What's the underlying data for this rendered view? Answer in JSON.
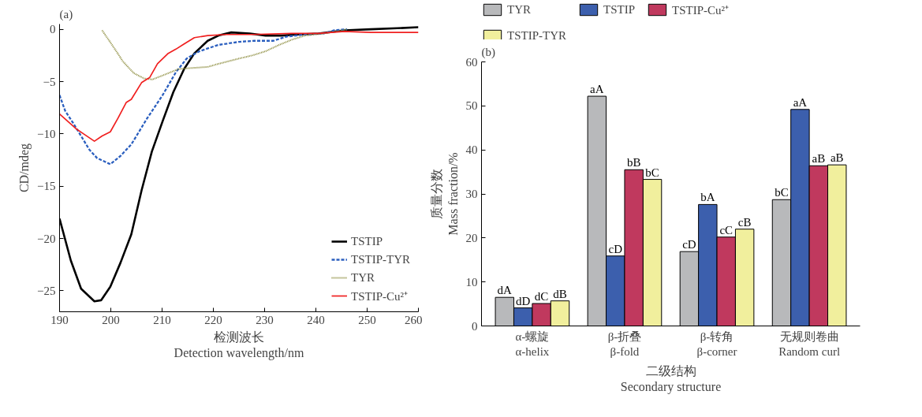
{
  "chart_data": [
    {
      "type": "line",
      "title": "(a)",
      "xlabel": "检测波长\nDetection wavelength/nm",
      "ylabel": "CD/mdeg",
      "xlim": [
        190,
        260
      ],
      "xticks": [
        190,
        200,
        210,
        220,
        230,
        240,
        250,
        260
      ],
      "ylim": [
        -27,
        0.5
      ],
      "yticks": [
        0,
        {
          "value": -5,
          "label": "−5"
        },
        {
          "value": -10,
          "label": "−10"
        },
        {
          "value": -15,
          "label": "−15"
        },
        {
          "value": -20,
          "label": "−20"
        },
        {
          "value": -25,
          "label": "−25"
        }
      ],
      "grid": false,
      "legend": "bottom right",
      "marker": "none",
      "series": [
        {
          "name": "TSTIP",
          "color": "#000000",
          "line_style": "solid",
          "x": [
            190,
            192.2,
            194.2,
            196.8,
            198.1,
            199.9,
            201.9,
            204,
            206,
            208,
            210.1,
            212.2,
            214.3,
            216.3,
            218.9,
            221,
            223.5,
            227.1,
            230.2,
            233.3,
            236.4,
            240.5,
            245.6,
            250.7,
            255.9,
            260
          ],
          "values": [
            -18.1,
            -22.1,
            -24.8,
            -26.0,
            -25.9,
            -24.6,
            -22.3,
            -19.6,
            -15.4,
            -11.7,
            -8.8,
            -6.0,
            -3.8,
            -2.3,
            -1.1,
            -0.6,
            -0.3,
            -0.4,
            -0.6,
            -0.6,
            -0.5,
            -0.4,
            -0.1,
            0,
            0.1,
            0.2
          ]
        },
        {
          "name": "TSTIP-TYR",
          "color": "#2b5fbf",
          "line_style": "dashed",
          "x": [
            190,
            191.1,
            192.7,
            194.2,
            195.8,
            197.3,
            199.9,
            201.9,
            204,
            207.1,
            210.1,
            212.7,
            214.8,
            217.3,
            220.9,
            225,
            228.1,
            231.7,
            234.3,
            237.9,
            241.5,
            243.6,
            246.1
          ],
          "values": [
            -6.3,
            -7.8,
            -9.0,
            -10.2,
            -11.5,
            -12.3,
            -12.9,
            -12.1,
            -11.0,
            -8.5,
            -6.3,
            -4.1,
            -2.8,
            -2.1,
            -1.5,
            -1.2,
            -1.1,
            -1.1,
            -0.7,
            -0.5,
            -0.4,
            -0.1,
            0
          ]
        },
        {
          "name": "TYR",
          "color": "#8a8a3a",
          "line_style": "dotted",
          "x": [
            198.3,
            200.4,
            202.4,
            204.5,
            206.5,
            208.1,
            210.7,
            213.2,
            215.8,
            218.9,
            221,
            225,
            227.6,
            230.2,
            232.8,
            235.3,
            237.9,
            241.5,
            244.1,
            246.1
          ],
          "values": [
            -0.1,
            -1.6,
            -3.1,
            -4.2,
            -4.7,
            -4.8,
            -4.3,
            -3.8,
            -3.7,
            -3.6,
            -3.3,
            -2.8,
            -2.5,
            -2.1,
            -1.5,
            -1.0,
            -0.6,
            -0.4,
            -0.2,
            0
          ]
        },
        {
          "name": "TSTIP-Cu²⁺",
          "color": "#f02020",
          "line_style": "solid",
          "x": [
            190,
            191.6,
            193.2,
            194.7,
            196.8,
            198.3,
            199.9,
            201.4,
            203,
            204,
            206,
            207.6,
            209.1,
            211.2,
            212.7,
            214.3,
            216.3,
            218.9,
            222.5,
            227.6,
            235.3,
            240.5,
            245.6,
            250.7,
            255.9,
            260
          ],
          "values": [
            -8.1,
            -8.8,
            -9.5,
            -10.0,
            -10.7,
            -10.2,
            -9.8,
            -8.5,
            -7.0,
            -6.7,
            -5.1,
            -4.6,
            -3.3,
            -2.3,
            -1.9,
            -1.4,
            -0.8,
            -0.6,
            -0.5,
            -0.5,
            -0.4,
            -0.4,
            -0.2,
            -0.3,
            -0.3,
            -0.3
          ]
        }
      ]
    },
    {
      "type": "bar",
      "title": "(b)",
      "xlabel": "二级结构\nSecondary structure",
      "ylabel": "质量分数\nMass fraction/%",
      "categories": [
        "α-螺旋\nα-helix",
        "β-折叠\nβ-fold",
        "β-转角\nβ-corner",
        "无规则卷曲\nRandom curl"
      ],
      "ylim": [
        0,
        60
      ],
      "yticks": [
        0,
        10,
        20,
        30,
        40,
        50,
        60
      ],
      "grid": false,
      "legend": "top",
      "series": [
        {
          "name": "TYR",
          "color": "#b8b9bb",
          "values": [
            6.5,
            52.2,
            16.9,
            28.7
          ],
          "value_labels": [
            "dA",
            "aA",
            "cD",
            "bC"
          ]
        },
        {
          "name": "TSTIP",
          "color": "#3c5fad",
          "values": [
            4.1,
            15.9,
            27.6,
            49.2
          ],
          "value_labels": [
            "dD",
            "cD",
            "bA",
            "aA"
          ]
        },
        {
          "name": "TSTIP-Cu²⁺",
          "color": "#c0395e",
          "values": [
            5.1,
            35.5,
            20.2,
            36.4
          ],
          "value_labels": [
            "dC",
            "bB",
            "cC",
            "aB"
          ]
        },
        {
          "name": "TSTIP-TYR",
          "color": "#f1ef9d",
          "values": [
            5.7,
            33.3,
            22.0,
            36.6
          ],
          "value_labels": [
            "dB",
            "bC",
            "cB",
            "aB"
          ]
        }
      ]
    }
  ]
}
